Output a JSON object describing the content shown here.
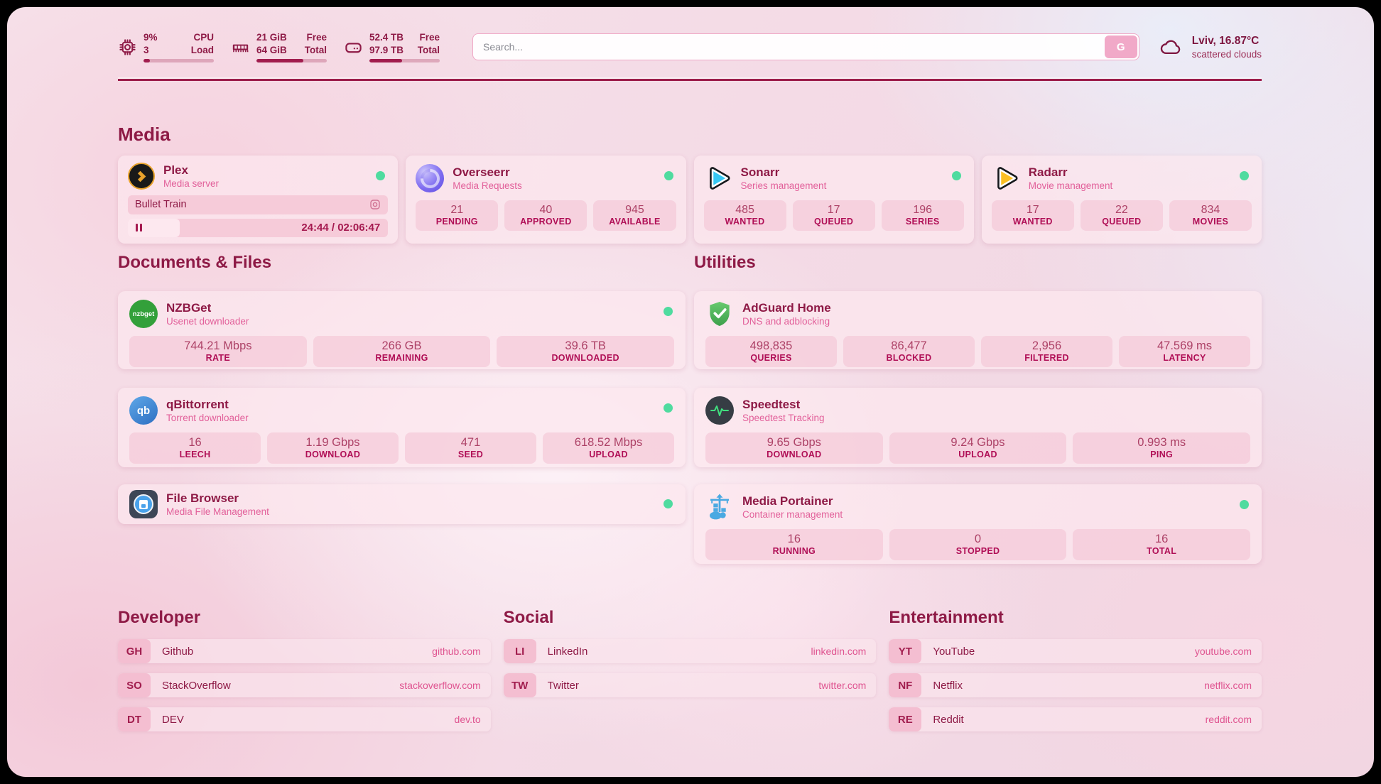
{
  "theme": {
    "accent": "#8e1a46",
    "accent_strong": "#a11d4e",
    "pink_text": "#e2609a",
    "status_green": "#4fdb9f"
  },
  "header": {
    "system": [
      {
        "icon": "cpu-icon",
        "value1": "9%",
        "label1": "CPU",
        "value2": "3",
        "label2": "Load",
        "progress": 9
      },
      {
        "icon": "ram-icon",
        "value1": "21 GiB",
        "label1": "Free",
        "value2": "64 GiB",
        "label2": "Total",
        "progress": 67
      },
      {
        "icon": "disk-icon",
        "value1": "52.4 TB",
        "label1": "Free",
        "value2": "97.9 TB",
        "label2": "Total",
        "progress": 46
      }
    ],
    "search": {
      "placeholder": "Search...",
      "button_label": "G"
    },
    "weather": {
      "icon": "cloud-icon",
      "location": "Lviv, 16.87°C",
      "condition": "scattered clouds"
    }
  },
  "sections": {
    "media": {
      "title": "Media",
      "plex": {
        "icon": "plex-icon",
        "name": "Plex",
        "desc": "Media server",
        "status": "online",
        "now_playing": {
          "title": "Bullet Train",
          "time": "24:44 / 02:06:47",
          "progress": 20
        }
      },
      "overseerr": {
        "icon": "overseerr-icon",
        "name": "Overseerr",
        "desc": "Media Requests",
        "status": "online",
        "stats": [
          {
            "value": "21",
            "label": "PENDING"
          },
          {
            "value": "40",
            "label": "APPROVED"
          },
          {
            "value": "945",
            "label": "AVAILABLE"
          }
        ]
      },
      "sonarr": {
        "icon": "sonarr-icon",
        "name": "Sonarr",
        "desc": "Series management",
        "status": "online",
        "stats": [
          {
            "value": "485",
            "label": "WANTED"
          },
          {
            "value": "17",
            "label": "QUEUED"
          },
          {
            "value": "196",
            "label": "SERIES"
          }
        ]
      },
      "radarr": {
        "icon": "radarr-icon",
        "name": "Radarr",
        "desc": "Movie management",
        "status": "online",
        "stats": [
          {
            "value": "17",
            "label": "WANTED"
          },
          {
            "value": "22",
            "label": "QUEUED"
          },
          {
            "value": "834",
            "label": "MOVIES"
          }
        ]
      }
    },
    "documents": {
      "title": "Documents & Files",
      "nzbget": {
        "icon": "nzbget-icon",
        "name": "NZBGet",
        "desc": "Usenet downloader",
        "status": "online",
        "stats": [
          {
            "value": "744.21 Mbps",
            "label": "RATE"
          },
          {
            "value": "266 GB",
            "label": "REMAINING"
          },
          {
            "value": "39.6 TB",
            "label": "DOWNLOADED"
          }
        ]
      },
      "qbittorrent": {
        "icon": "qbittorrent-icon",
        "name": "qBittorrent",
        "desc": "Torrent downloader",
        "status": "online",
        "stats": [
          {
            "value": "16",
            "label": "LEECH"
          },
          {
            "value": "1.19 Gbps",
            "label": "DOWNLOAD"
          },
          {
            "value": "471",
            "label": "SEED"
          },
          {
            "value": "618.52 Mbps",
            "label": "UPLOAD"
          }
        ]
      },
      "filebrowser": {
        "icon": "filebrowser-icon",
        "name": "File Browser",
        "desc": "Media File Management",
        "status": "online"
      }
    },
    "utilities": {
      "title": "Utilities",
      "adguard": {
        "icon": "adguard-icon",
        "name": "AdGuard Home",
        "desc": "DNS and adblocking",
        "stats": [
          {
            "value": "498,835",
            "label": "QUERIES"
          },
          {
            "value": "86,477",
            "label": "BLOCKED"
          },
          {
            "value": "2,956",
            "label": "FILTERED"
          },
          {
            "value": "47.569 ms",
            "label": "LATENCY"
          }
        ]
      },
      "speedtest": {
        "icon": "speedtest-icon",
        "name": "Speedtest",
        "desc": "Speedtest Tracking",
        "stats": [
          {
            "value": "9.65 Gbps",
            "label": "DOWNLOAD"
          },
          {
            "value": "9.24 Gbps",
            "label": "UPLOAD"
          },
          {
            "value": "0.993 ms",
            "label": "PING"
          }
        ]
      },
      "portainer": {
        "icon": "portainer-icon",
        "name": "Media Portainer",
        "desc": "Container management",
        "status": "online",
        "stats": [
          {
            "value": "16",
            "label": "RUNNING"
          },
          {
            "value": "0",
            "label": "STOPPED"
          },
          {
            "value": "16",
            "label": "TOTAL"
          }
        ]
      }
    },
    "developer": {
      "title": "Developer",
      "links": [
        {
          "tag": "GH",
          "name": "Github",
          "url": "github.com"
        },
        {
          "tag": "SO",
          "name": "StackOverflow",
          "url": "stackoverflow.com"
        },
        {
          "tag": "DT",
          "name": "DEV",
          "url": "dev.to"
        }
      ]
    },
    "social": {
      "title": "Social",
      "links": [
        {
          "tag": "LI",
          "name": "LinkedIn",
          "url": "linkedin.com"
        },
        {
          "tag": "TW",
          "name": "Twitter",
          "url": "twitter.com"
        }
      ]
    },
    "entertainment": {
      "title": "Entertainment",
      "links": [
        {
          "tag": "YT",
          "name": "YouTube",
          "url": "youtube.com"
        },
        {
          "tag": "NF",
          "name": "Netflix",
          "url": "netflix.com"
        },
        {
          "tag": "RE",
          "name": "Reddit",
          "url": "reddit.com"
        }
      ]
    }
  }
}
